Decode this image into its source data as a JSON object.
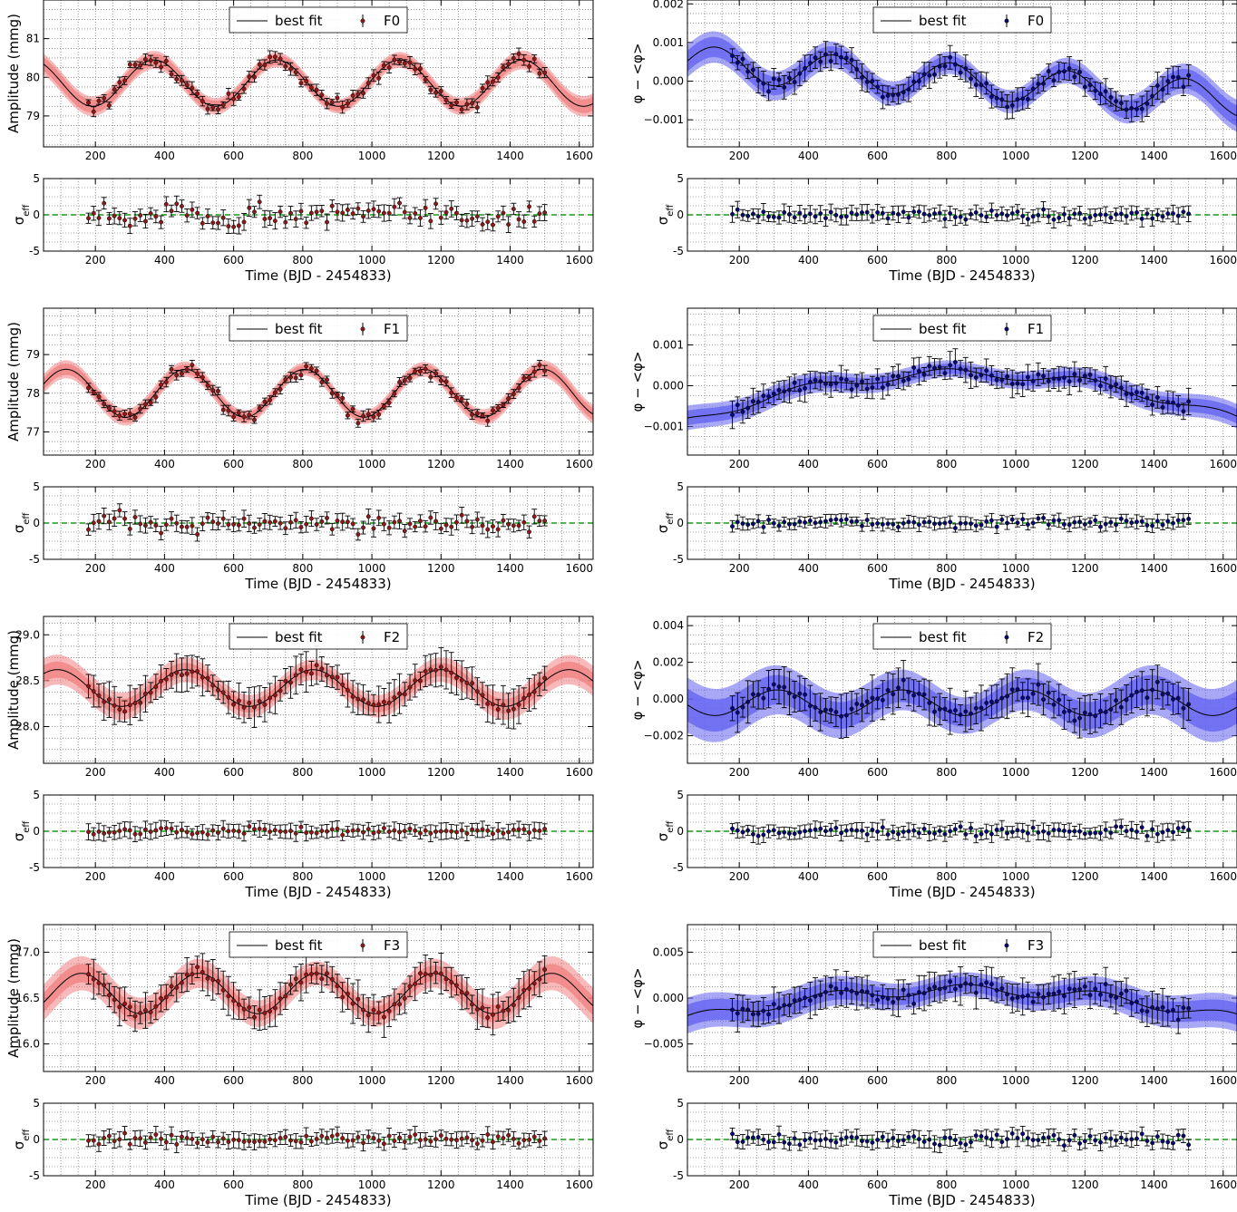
{
  "figure": {
    "xlabel": "Time (BJD - 2454833)",
    "residual_ylabel": "σ",
    "residual_ylabel_sub": "eff",
    "legend_fit_label": "best fit"
  },
  "chart_data": [
    {
      "type": "line",
      "panel": "amplitude",
      "mode": "F0",
      "legend": [
        "best fit",
        "F0"
      ],
      "ylabel": "Amplitude (mmg)",
      "xlim": [
        50,
        1640
      ],
      "ylim": [
        78.2,
        82.0
      ],
      "xticks": [
        200,
        400,
        600,
        800,
        1000,
        1200,
        1400,
        1600
      ],
      "yticks": [
        79,
        80,
        81
      ],
      "ytick_labels": [
        "79",
        "80",
        "81"
      ],
      "fit_color": "#f08080",
      "marker_color": "#8b1a1a",
      "fit": {
        "mean": 79.85,
        "amp": 0.6,
        "period": 355,
        "phase": 370,
        "drift": 0.0,
        "band1": 0.12,
        "band2": 0.18
      },
      "points": {
        "x_start": 180,
        "x_step": 15,
        "noise": 0.25,
        "err": 0.12,
        "y_display_digits": 2
      },
      "residuals": {
        "noise": 1.6,
        "err": 0.6,
        "ylim": [
          -5,
          5
        ],
        "yticks": [
          -5,
          0,
          5
        ]
      },
      "grid": true
    },
    {
      "type": "line",
      "panel": "phase",
      "mode": "F0",
      "legend": [
        "best fit",
        "F0"
      ],
      "ylabel": "φ − <φ>",
      "xlim": [
        50,
        1640
      ],
      "ylim": [
        -0.0017,
        0.0021
      ],
      "xticks": [
        200,
        400,
        600,
        800,
        1000,
        1200,
        1400,
        1600
      ],
      "yticks": [
        -0.001,
        0.0,
        0.001,
        0.002
      ],
      "ytick_labels": [
        "−0.001",
        "0.000",
        "0.001",
        "0.002"
      ],
      "fit_color": "#6060f0",
      "marker_color": "#0a0a6a",
      "fit": {
        "mean": 0.0,
        "amp": 0.00045,
        "period": 340,
        "phase": 470,
        "drift": -0.0003,
        "band1": 0.00018,
        "band2": 0.00028
      },
      "points": {
        "x_start": 180,
        "x_step": 15,
        "noise": 0.00025,
        "err": 0.00025
      },
      "residuals": {
        "noise": 0.6,
        "err": 0.6,
        "ylim": [
          -5,
          5
        ],
        "yticks": [
          -5,
          0,
          5
        ]
      },
      "grid": true
    },
    {
      "type": "line",
      "panel": "amplitude",
      "mode": "F1",
      "legend": [
        "best fit",
        "F1"
      ],
      "ylabel": "Amplitude (mmg)",
      "xlim": [
        50,
        1640
      ],
      "ylim": [
        76.4,
        80.2
      ],
      "xticks": [
        200,
        400,
        600,
        800,
        1000,
        1200,
        1400,
        1600
      ],
      "yticks": [
        77,
        78,
        79
      ],
      "ytick_labels": [
        "77",
        "78",
        "79"
      ],
      "fit_color": "#f08080",
      "marker_color": "#8b1a1a",
      "fit": {
        "mean": 78.0,
        "amp": 0.62,
        "period": 345,
        "phase": 460,
        "drift": -0.00025,
        "band1": 0.1,
        "band2": 0.16
      },
      "points": {
        "x_start": 180,
        "x_step": 15,
        "noise": 0.18,
        "err": 0.1
      },
      "residuals": {
        "noise": 1.4,
        "err": 0.6,
        "ylim": [
          -5,
          5
        ],
        "yticks": [
          -5,
          0,
          5
        ]
      },
      "grid": true
    },
    {
      "type": "line",
      "panel": "phase",
      "mode": "F1",
      "legend": [
        "best fit",
        "F1"
      ],
      "ylabel": "φ − <φ>",
      "xlim": [
        50,
        1640
      ],
      "ylim": [
        -0.0017,
        0.0019
      ],
      "xticks": [
        200,
        400,
        600,
        800,
        1000,
        1200,
        1400,
        1600
      ],
      "yticks": [
        -0.001,
        0.0,
        0.001
      ],
      "ytick_labels": [
        "−0.001",
        "0.000",
        "0.001"
      ],
      "fit_color": "#6060f0",
      "marker_color": "#0a0a6a",
      "fit": {
        "mean": 0.0,
        "amp": 0.00012,
        "period": 400,
        "phase": 700,
        "trend": "hump",
        "drift": 0.0,
        "band1": 0.00012,
        "band2": 0.0002
      },
      "points": {
        "x_start": 180,
        "x_step": 15,
        "noise": 0.00018,
        "err": 0.00025
      },
      "residuals": {
        "noise": 0.6,
        "err": 0.5,
        "ylim": [
          -5,
          5
        ],
        "yticks": [
          -5,
          0,
          5
        ]
      },
      "grid": true
    },
    {
      "type": "line",
      "panel": "amplitude",
      "mode": "F2",
      "legend": [
        "best fit",
        "F2"
      ],
      "ylabel": "Amplitude (mmg)",
      "xlim": [
        50,
        1640
      ],
      "ylim": [
        27.6,
        29.2
      ],
      "xticks": [
        200,
        400,
        600,
        800,
        1000,
        1200,
        1400,
        1600
      ],
      "yticks": [
        28.0,
        28.5,
        29.0
      ],
      "ytick_labels": [
        "28.0",
        "28.5",
        "29.0"
      ],
      "fit_color": "#f08080",
      "marker_color": "#8b1a1a",
      "fit": {
        "mean": 28.42,
        "amp": 0.2,
        "period": 370,
        "phase": 460,
        "drift": 0.0,
        "band1": 0.06,
        "band2": 0.11
      },
      "points": {
        "x_start": 180,
        "x_step": 15,
        "noise": 0.06,
        "err": 0.16
      },
      "residuals": {
        "noise": 0.5,
        "err": 0.6,
        "ylim": [
          -5,
          5
        ],
        "yticks": [
          -5,
          0,
          5
        ]
      },
      "grid": true
    },
    {
      "type": "line",
      "panel": "phase",
      "mode": "F2",
      "legend": [
        "best fit",
        "F2"
      ],
      "ylabel": "φ − <φ>",
      "xlim": [
        50,
        1640
      ],
      "ylim": [
        -0.0035,
        0.0045
      ],
      "xticks": [
        200,
        400,
        600,
        800,
        1000,
        1200,
        1400,
        1600
      ],
      "yticks": [
        -0.002,
        0.0,
        0.002,
        0.004
      ],
      "ytick_labels": [
        "−0.002",
        "0.000",
        "0.002",
        "0.004"
      ],
      "fit_color": "#6060f0",
      "marker_color": "#0a0a6a",
      "fit": {
        "mean": -0.0002,
        "amp": 0.0007,
        "period": 360,
        "phase": 310,
        "drift": 0.0,
        "band1": 0.0006,
        "band2": 0.001
      },
      "points": {
        "x_start": 180,
        "x_step": 15,
        "noise": 0.0005,
        "err": 0.0009
      },
      "residuals": {
        "noise": 0.6,
        "err": 0.6,
        "ylim": [
          -5,
          5
        ],
        "yticks": [
          -5,
          0,
          5
        ]
      },
      "grid": true
    },
    {
      "type": "line",
      "panel": "amplitude",
      "mode": "F3",
      "legend": [
        "best fit",
        "F3"
      ],
      "ylabel": "Amplitude (mmg)",
      "xlim": [
        50,
        1640
      ],
      "ylim": [
        15.7,
        17.3
      ],
      "xticks": [
        200,
        400,
        600,
        800,
        1000,
        1200,
        1400,
        1600
      ],
      "yticks": [
        16.0,
        16.5,
        17.0
      ],
      "ytick_labels": [
        "16.0",
        "16.5",
        "17.0"
      ],
      "fit_color": "#f08080",
      "marker_color": "#8b1a1a",
      "fit": {
        "mean": 16.55,
        "amp": 0.22,
        "period": 340,
        "phase": 500,
        "drift": 0.0,
        "band1": 0.07,
        "band2": 0.13
      },
      "points": {
        "x_start": 180,
        "x_step": 15,
        "noise": 0.08,
        "err": 0.16
      },
      "residuals": {
        "noise": 0.7,
        "err": 0.6,
        "ylim": [
          -5,
          5
        ],
        "yticks": [
          -5,
          0,
          5
        ]
      },
      "grid": true
    },
    {
      "type": "line",
      "panel": "phase",
      "mode": "F3",
      "legend": [
        "best fit",
        "F3"
      ],
      "ylabel": "φ − <φ>",
      "xlim": [
        50,
        1640
      ],
      "ylim": [
        -0.008,
        0.008
      ],
      "xticks": [
        200,
        400,
        600,
        800,
        1000,
        1200,
        1400,
        1600
      ],
      "yticks": [
        -0.005,
        0.0,
        0.005
      ],
      "ytick_labels": [
        "−0.005",
        "0.000",
        "0.005"
      ],
      "fit_color": "#6060f0",
      "marker_color": "#0a0a6a",
      "fit": {
        "mean": 0.0,
        "amp": 0.0006,
        "period": 380,
        "phase": 760,
        "trend": "hump",
        "drift": 0.0,
        "band1": 0.0008,
        "band2": 0.0013
      },
      "points": {
        "x_start": 180,
        "x_step": 15,
        "noise": 0.0008,
        "err": 0.0015
      },
      "residuals": {
        "noise": 0.7,
        "err": 0.6,
        "ylim": [
          -5,
          5
        ],
        "yticks": [
          -5,
          0,
          5
        ]
      },
      "grid": true
    }
  ]
}
